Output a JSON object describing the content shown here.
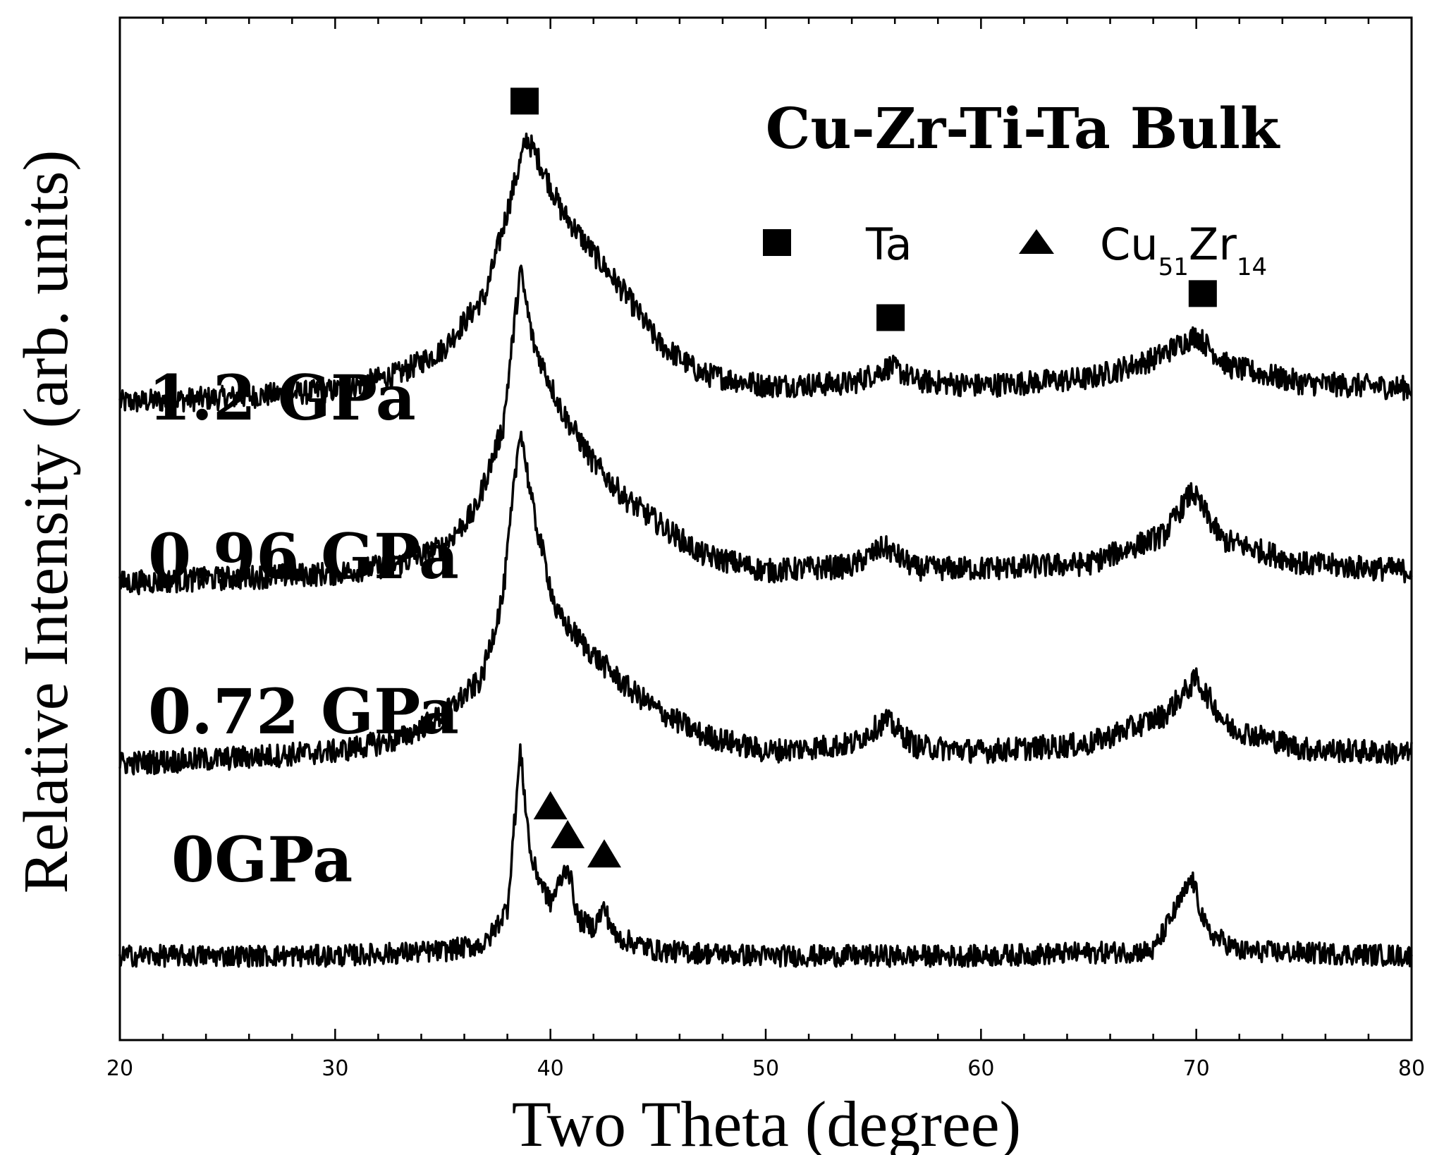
{
  "chart_data": {
    "type": "line",
    "title": "Cu-Zr-Ti-Ta  Bulk",
    "xlabel": "Two Theta (degree)",
    "ylabel": "Relative Intensity (arb. units)",
    "xlim": [
      20,
      80
    ],
    "xticks": [
      20,
      30,
      40,
      50,
      60,
      70,
      80
    ],
    "y_ticks_shown": false,
    "legend": {
      "position": "top-right",
      "entries": [
        {
          "marker": "square",
          "label": "Ta"
        },
        {
          "marker": "triangle",
          "label_main1": "Cu",
          "label_sub1": "51",
          "label_main2": "Zr",
          "label_sub2": "14"
        }
      ]
    },
    "series": [
      {
        "name": "1.2 GPa",
        "offset": 2.3,
        "noise": 0.05,
        "baseline": [
          [
            20,
            0.0
          ],
          [
            25,
            0.02
          ],
          [
            30,
            0.05
          ],
          [
            33,
            0.12
          ],
          [
            35,
            0.22
          ],
          [
            37,
            0.45
          ],
          [
            38.3,
            0.9
          ],
          [
            38.9,
            1.1
          ],
          [
            39.5,
            1.0
          ],
          [
            40.5,
            0.8
          ],
          [
            42,
            0.62
          ],
          [
            43.5,
            0.45
          ],
          [
            45,
            0.25
          ],
          [
            47,
            0.12
          ],
          [
            50,
            0.07
          ],
          [
            54,
            0.08
          ],
          [
            55.8,
            0.15
          ],
          [
            57,
            0.09
          ],
          [
            60,
            0.07
          ],
          [
            65,
            0.1
          ],
          [
            68,
            0.18
          ],
          [
            70,
            0.28
          ],
          [
            71.5,
            0.15
          ],
          [
            75,
            0.08
          ],
          [
            80,
            0.06
          ]
        ]
      },
      {
        "name": "0.96 GPa",
        "offset": 1.55,
        "noise": 0.05,
        "baseline": [
          [
            20,
            0.0
          ],
          [
            25,
            0.02
          ],
          [
            30,
            0.04
          ],
          [
            33,
            0.08
          ],
          [
            35,
            0.15
          ],
          [
            36.5,
            0.3
          ],
          [
            37.8,
            0.65
          ],
          [
            38.6,
            1.3
          ],
          [
            39.2,
            1.0
          ],
          [
            40.5,
            0.72
          ],
          [
            42,
            0.5
          ],
          [
            43.5,
            0.35
          ],
          [
            45,
            0.25
          ],
          [
            47,
            0.12
          ],
          [
            50,
            0.05
          ],
          [
            54,
            0.07
          ],
          [
            55.5,
            0.15
          ],
          [
            57,
            0.06
          ],
          [
            60,
            0.06
          ],
          [
            65,
            0.08
          ],
          [
            68.5,
            0.2
          ],
          [
            69.8,
            0.38
          ],
          [
            71.2,
            0.18
          ],
          [
            75,
            0.08
          ],
          [
            80,
            0.05
          ]
        ]
      },
      {
        "name": "0.72 GPa",
        "offset": 0.8,
        "noise": 0.05,
        "baseline": [
          [
            20,
            0.0
          ],
          [
            25,
            0.02
          ],
          [
            30,
            0.05
          ],
          [
            33,
            0.1
          ],
          [
            35,
            0.2
          ],
          [
            36.8,
            0.35
          ],
          [
            37.8,
            0.7
          ],
          [
            38.6,
            1.4
          ],
          [
            39.2,
            1.05
          ],
          [
            40.3,
            0.62
          ],
          [
            42,
            0.45
          ],
          [
            43.5,
            0.32
          ],
          [
            45,
            0.22
          ],
          [
            47,
            0.12
          ],
          [
            50,
            0.05
          ],
          [
            54,
            0.08
          ],
          [
            55.6,
            0.18
          ],
          [
            57,
            0.07
          ],
          [
            60,
            0.05
          ],
          [
            65,
            0.08
          ],
          [
            68.5,
            0.2
          ],
          [
            70,
            0.35
          ],
          [
            71.5,
            0.15
          ],
          [
            75,
            0.06
          ],
          [
            80,
            0.04
          ]
        ]
      },
      {
        "name": "0GPa",
        "offset": 0.0,
        "noise": 0.045,
        "baseline": [
          [
            20,
            0.0
          ],
          [
            30,
            0.0
          ],
          [
            35,
            0.02
          ],
          [
            37,
            0.05
          ],
          [
            38.0,
            0.2
          ],
          [
            38.6,
            0.85
          ],
          [
            39.1,
            0.4
          ],
          [
            40.0,
            0.22
          ],
          [
            40.8,
            0.38
          ],
          [
            41.3,
            0.15
          ],
          [
            42.0,
            0.12
          ],
          [
            42.5,
            0.2
          ],
          [
            43.0,
            0.08
          ],
          [
            45,
            0.02
          ],
          [
            50,
            0.0
          ],
          [
            60,
            0.0
          ],
          [
            68,
            0.02
          ],
          [
            69.8,
            0.32
          ],
          [
            70.5,
            0.1
          ],
          [
            72,
            0.02
          ],
          [
            80,
            0.0
          ]
        ]
      }
    ],
    "annotations": [
      {
        "marker": "square",
        "x": 38.8,
        "y": 3.55
      },
      {
        "marker": "square",
        "x": 55.8,
        "y": 2.65
      },
      {
        "marker": "square",
        "x": 70.3,
        "y": 2.75
      },
      {
        "marker": "triangle",
        "x": 40.0,
        "y": 0.62
      },
      {
        "marker": "triangle",
        "x": 40.8,
        "y": 0.5
      },
      {
        "marker": "triangle",
        "x": 42.5,
        "y": 0.42
      }
    ]
  }
}
